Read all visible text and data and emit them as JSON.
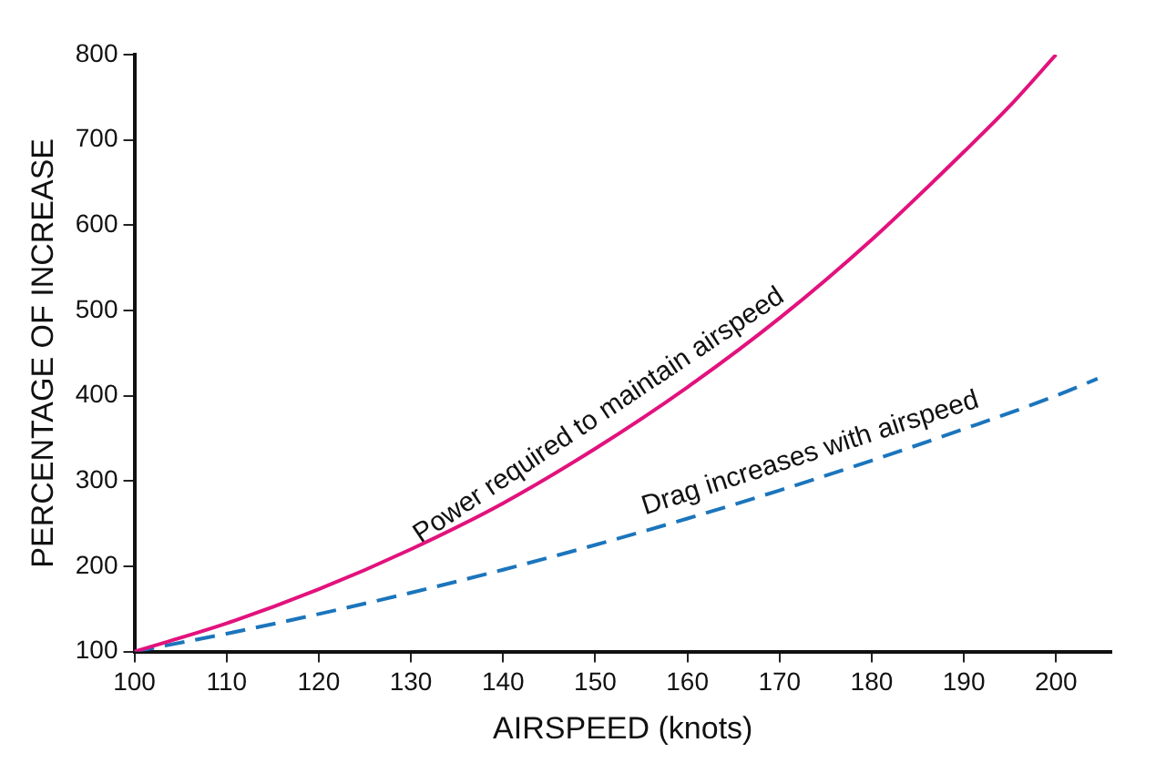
{
  "chart_data": {
    "type": "line",
    "xlabel": "AIRSPEED (knots)",
    "ylabel": "PERCENTAGE OF INCREASE",
    "xlim": [
      100,
      206
    ],
    "xticks": [
      100,
      110,
      120,
      130,
      140,
      150,
      160,
      170,
      180,
      190,
      200
    ],
    "ylim": [
      100,
      800
    ],
    "yticks": [
      100,
      200,
      300,
      400,
      500,
      600,
      700,
      800
    ],
    "grid": false,
    "legend": false,
    "marker": "none",
    "series": [
      {
        "color": "#e2127d",
        "line_style": "solid",
        "x": [
          100,
          110,
          120,
          130,
          140,
          150,
          160,
          170,
          180,
          190,
          195,
          200
        ],
        "values": [
          100,
          133,
          173,
          220,
          274,
          338,
          410,
          491,
          583,
          686,
          740,
          800
        ]
      },
      {
        "color": "#1b75bc",
        "line_style": "dashed",
        "x": [
          100,
          110,
          120,
          130,
          140,
          150,
          160,
          170,
          180,
          190,
          200,
          204.5
        ],
        "values": [
          100,
          121,
          144,
          169,
          196,
          225,
          256,
          289,
          324,
          361,
          400,
          420
        ]
      }
    ],
    "annotations": [
      "Power required to maintain airspeed",
      "Drag increases with airspeed"
    ]
  }
}
